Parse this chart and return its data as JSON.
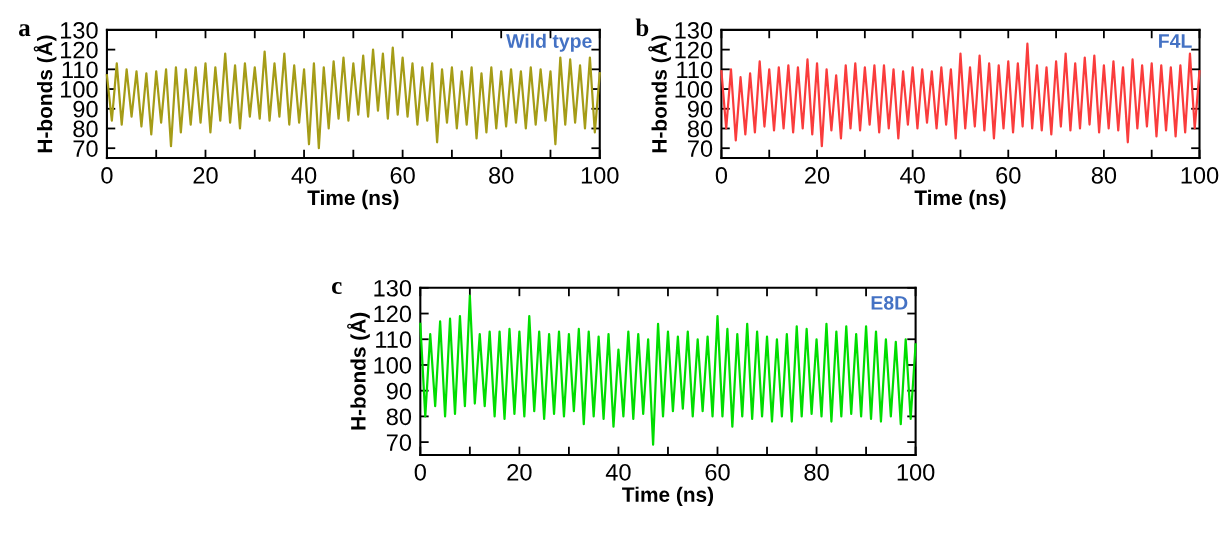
{
  "chart_data": [
    {
      "type": "line",
      "title": "a",
      "xlabel": "Time (ns)",
      "ylabel": "H-bonds (Å)",
      "annotations": [
        "Wild type"
      ],
      "xlim": [
        0,
        100
      ],
      "ylim": [
        65,
        130
      ],
      "grid": false,
      "marker": "none",
      "line_style": "solid",
      "xticks": [
        0,
        {
          "value": 10,
          "label": null
        },
        20,
        {
          "value": 30,
          "label": null
        },
        40,
        {
          "value": 50,
          "label": null
        },
        60,
        {
          "value": 70,
          "label": null
        },
        80,
        {
          "value": 90,
          "label": null
        },
        100
      ],
      "yticks": [
        70,
        80,
        90,
        100,
        110,
        120,
        130
      ],
      "x": [
        0,
        1,
        2,
        3,
        4,
        5,
        6,
        7,
        8,
        9,
        10,
        11,
        12,
        13,
        14,
        15,
        16,
        17,
        18,
        19,
        20,
        21,
        22,
        23,
        24,
        25,
        26,
        27,
        28,
        29,
        30,
        31,
        32,
        33,
        34,
        35,
        36,
        37,
        38,
        39,
        40,
        41,
        42,
        43,
        44,
        45,
        46,
        47,
        48,
        49,
        50,
        51,
        52,
        53,
        54,
        55,
        56,
        57,
        58,
        59,
        60,
        61,
        62,
        63,
        64,
        65,
        66,
        67,
        68,
        69,
        70,
        71,
        72,
        73,
        74,
        75,
        76,
        77,
        78,
        79,
        80,
        81,
        82,
        83,
        84,
        85,
        86,
        87,
        88,
        89,
        90,
        91,
        92,
        93,
        94,
        95,
        96,
        97,
        98,
        99,
        100
      ],
      "series": [
        {
          "color": "#a59c17",
          "values": [
            107,
            84,
            113,
            82,
            110,
            86,
            109,
            81,
            108,
            77,
            109,
            83,
            110,
            71,
            111,
            78,
            110,
            82,
            111,
            83,
            113,
            78,
            111,
            84,
            118,
            83,
            112,
            80,
            113,
            86,
            111,
            85,
            119,
            84,
            113,
            86,
            118,
            82,
            112,
            83,
            110,
            72,
            113,
            70,
            111,
            80,
            114,
            85,
            116,
            84,
            113,
            87,
            117,
            86,
            120,
            89,
            118,
            85,
            121,
            87,
            116,
            86,
            113,
            82,
            111,
            84,
            113,
            73,
            110,
            83,
            111,
            80,
            109,
            82,
            111,
            75,
            108,
            78,
            111,
            80,
            109,
            81,
            110,
            83,
            109,
            80,
            111,
            82,
            110,
            84,
            109,
            72,
            116,
            82,
            115,
            83,
            112,
            80,
            116,
            78,
            108
          ]
        }
      ]
    },
    {
      "type": "line",
      "title": "b",
      "xlabel": "Time (ns)",
      "ylabel": "H-bonds (Å)",
      "annotations": [
        "F4L"
      ],
      "xlim": [
        0,
        100
      ],
      "ylim": [
        65,
        130
      ],
      "grid": false,
      "marker": "none",
      "line_style": "solid",
      "xticks": [
        0,
        {
          "value": 10,
          "label": null
        },
        20,
        {
          "value": 30,
          "label": null
        },
        40,
        {
          "value": 50,
          "label": null
        },
        60,
        {
          "value": 70,
          "label": null
        },
        80,
        {
          "value": 90,
          "label": null
        },
        100
      ],
      "yticks": [
        70,
        80,
        90,
        100,
        110,
        120,
        130
      ],
      "x": [
        0,
        1,
        2,
        3,
        4,
        5,
        6,
        7,
        8,
        9,
        10,
        11,
        12,
        13,
        14,
        15,
        16,
        17,
        18,
        19,
        20,
        21,
        22,
        23,
        24,
        25,
        26,
        27,
        28,
        29,
        30,
        31,
        32,
        33,
        34,
        35,
        36,
        37,
        38,
        39,
        40,
        41,
        42,
        43,
        44,
        45,
        46,
        47,
        48,
        49,
        50,
        51,
        52,
        53,
        54,
        55,
        56,
        57,
        58,
        59,
        60,
        61,
        62,
        63,
        64,
        65,
        66,
        67,
        68,
        69,
        70,
        71,
        72,
        73,
        74,
        75,
        76,
        77,
        78,
        79,
        80,
        81,
        82,
        83,
        84,
        85,
        86,
        87,
        88,
        89,
        90,
        91,
        92,
        93,
        94,
        95,
        96,
        97,
        98,
        99,
        100
      ],
      "series": [
        {
          "color": "#fa3c3c",
          "values": [
            109,
            80,
            110,
            74,
            106,
            77,
            108,
            78,
            114,
            81,
            110,
            79,
            111,
            80,
            112,
            78,
            111,
            80,
            115,
            77,
            113,
            71,
            110,
            79,
            107,
            75,
            112,
            80,
            113,
            79,
            111,
            82,
            112,
            78,
            112,
            80,
            110,
            75,
            109,
            82,
            111,
            80,
            110,
            83,
            109,
            80,
            111,
            82,
            110,
            75,
            118,
            80,
            111,
            81,
            117,
            79,
            113,
            75,
            112,
            80,
            114,
            78,
            113,
            81,
            123,
            80,
            112,
            79,
            111,
            77,
            114,
            81,
            118,
            79,
            113,
            80,
            116,
            82,
            117,
            78,
            112,
            80,
            114,
            79,
            111,
            73,
            115,
            80,
            112,
            81,
            113,
            76,
            112,
            79,
            111,
            76,
            112,
            78,
            118,
            80,
            109
          ]
        }
      ]
    },
    {
      "type": "line",
      "title": "c",
      "xlabel": "Time (ns)",
      "ylabel": "H-bonds (Å)",
      "annotations": [
        "E8D"
      ],
      "xlim": [
        0,
        100
      ],
      "ylim": [
        65,
        130
      ],
      "grid": false,
      "marker": "none",
      "line_style": "solid",
      "xticks": [
        0,
        {
          "value": 10,
          "label": null
        },
        20,
        {
          "value": 30,
          "label": null
        },
        40,
        {
          "value": 50,
          "label": null
        },
        60,
        {
          "value": 70,
          "label": null
        },
        80,
        {
          "value": 90,
          "label": null
        },
        100
      ],
      "yticks": [
        70,
        80,
        90,
        100,
        110,
        120,
        130
      ],
      "x": [
        0,
        1,
        2,
        3,
        4,
        5,
        6,
        7,
        8,
        9,
        10,
        11,
        12,
        13,
        14,
        15,
        16,
        17,
        18,
        19,
        20,
        21,
        22,
        23,
        24,
        25,
        26,
        27,
        28,
        29,
        30,
        31,
        32,
        33,
        34,
        35,
        36,
        37,
        38,
        39,
        40,
        41,
        42,
        43,
        44,
        45,
        46,
        47,
        48,
        49,
        50,
        51,
        52,
        53,
        54,
        55,
        56,
        57,
        58,
        59,
        60,
        61,
        62,
        63,
        64,
        65,
        66,
        67,
        68,
        69,
        70,
        71,
        72,
        73,
        74,
        75,
        76,
        77,
        78,
        79,
        80,
        81,
        82,
        83,
        84,
        85,
        86,
        87,
        88,
        89,
        90,
        91,
        92,
        93,
        94,
        95,
        96,
        97,
        98,
        99,
        100
      ],
      "series": [
        {
          "color": "#00dd00",
          "values": [
            116,
            80,
            112,
            84,
            117,
            80,
            118,
            81,
            119,
            84,
            127,
            85,
            112,
            84,
            113,
            80,
            113,
            79,
            114,
            81,
            113,
            80,
            119,
            82,
            113,
            79,
            112,
            81,
            113,
            80,
            112,
            82,
            114,
            77,
            113,
            80,
            111,
            79,
            112,
            76,
            106,
            80,
            113,
            79,
            112,
            81,
            110,
            69,
            116,
            80,
            113,
            82,
            111,
            83,
            113,
            80,
            110,
            82,
            111,
            80,
            119,
            80,
            114,
            76,
            112,
            80,
            116,
            79,
            113,
            80,
            111,
            78,
            110,
            80,
            112,
            78,
            115,
            80,
            114,
            81,
            110,
            80,
            116,
            78,
            113,
            80,
            115,
            81,
            112,
            80,
            115,
            79,
            113,
            78,
            110,
            80,
            109,
            77,
            110,
            79,
            108
          ]
        }
      ]
    }
  ]
}
